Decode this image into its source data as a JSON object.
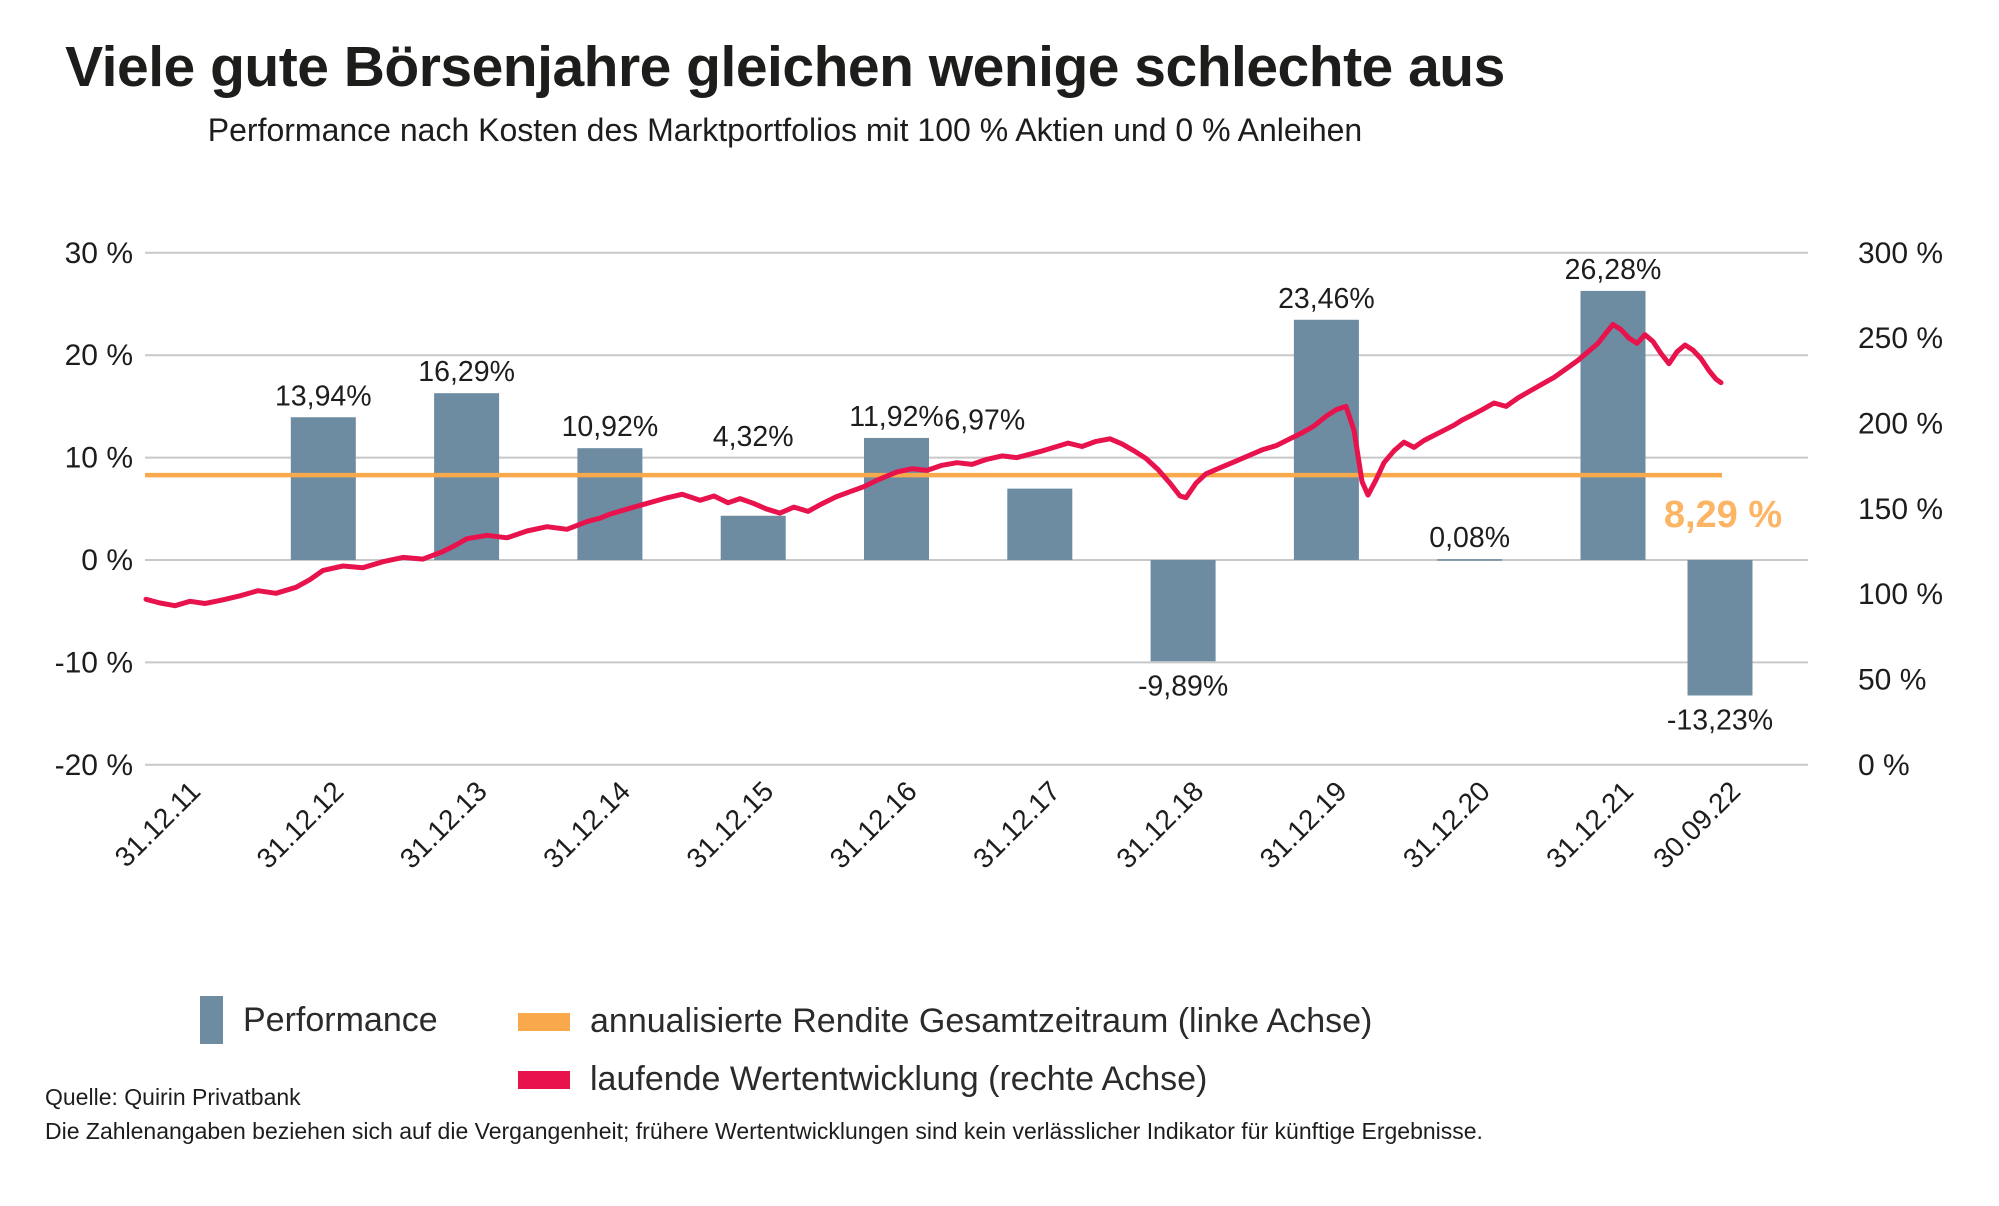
{
  "title": "Viele gute Börsenjahre gleichen wenige schlechte aus",
  "subtitle": "Performance nach Kosten des Marktportfolios mit 100 % Aktien und 0 % Anleihen",
  "colors": {
    "bar": "#6D8CA2",
    "running_line": "#E8124D",
    "annual_line": "#F8A94C",
    "annual_label": "#FBB564",
    "grid": "#C8C8C8",
    "text": "#1D1D1B"
  },
  "chart_data": {
    "type": "bar",
    "title": "Viele gute Börsenjahre gleichen wenige schlechte aus",
    "subtitle": "Performance nach Kosten des Marktportfolios mit 100 % Aktien und 0 % Anleihen",
    "categories": [
      "31.12.11",
      "31.12.12",
      "31.12.13",
      "31.12.14",
      "31.12.15",
      "31.12.16",
      "31.12.17",
      "31.12.18",
      "31.12.19",
      "31.12.20",
      "31.12.21",
      "30.09.22"
    ],
    "grid": true,
    "legend_position": "bottom",
    "left_axis": {
      "min": -20,
      "max": 30,
      "tick_values": [
        30,
        20,
        10,
        0,
        -10,
        -20
      ],
      "tick_labels": [
        "30 %",
        "20 %",
        "10 %",
        "0 %",
        "-10 %",
        "-20 %"
      ]
    },
    "right_axis": {
      "min": 0,
      "max": 300,
      "tick_values": [
        300,
        250,
        200,
        150,
        100,
        50,
        0
      ],
      "tick_labels": [
        "300 %",
        "250 %",
        "200 %",
        "150 %",
        "100 %",
        "50 %",
        "0 %"
      ]
    },
    "series": [
      {
        "name": "Performance",
        "type": "bar",
        "axis": "left",
        "unit": "%",
        "values": [
          13.94,
          16.29,
          10.92,
          4.32,
          11.92,
          6.97,
          -9.89,
          23.46,
          0.08,
          26.28,
          -13.23
        ],
        "labels": [
          "13,94%",
          "16,29%",
          "10,92%",
          "4,32%",
          "11,92%",
          "6,97%",
          "-9,89%",
          "23,46%",
          "0,08%",
          "26,28%",
          "-13,23%"
        ]
      },
      {
        "name": "annualisierte Rendite Gesamtzeitraum (linke Achse)",
        "type": "constant-line",
        "axis": "left",
        "value": 8.29,
        "label": "8,29 %"
      },
      {
        "name": "laufende Wertentwicklung (rechte Achse)",
        "type": "line",
        "axis": "right",
        "unit": "%",
        "points": [
          [
            146,
            97
          ],
          [
            160,
            94.8
          ],
          [
            175,
            93.2
          ],
          [
            190,
            95.8
          ],
          [
            205,
            94.5
          ],
          [
            222,
            96.5
          ],
          [
            240,
            99
          ],
          [
            258,
            102
          ],
          [
            276,
            100.5
          ],
          [
            296,
            104
          ],
          [
            310,
            108.5
          ],
          [
            323,
            113.9
          ],
          [
            343,
            116.5
          ],
          [
            363,
            115.5
          ],
          [
            383,
            119
          ],
          [
            403,
            121.5
          ],
          [
            423,
            120.5
          ],
          [
            443,
            125
          ],
          [
            455,
            128.5
          ],
          [
            467,
            132.5
          ],
          [
            487,
            134.5
          ],
          [
            507,
            133
          ],
          [
            527,
            137
          ],
          [
            547,
            139.5
          ],
          [
            567,
            138
          ],
          [
            587,
            142.5
          ],
          [
            600,
            144.5
          ],
          [
            610,
            146.9
          ],
          [
            628,
            150
          ],
          [
            646,
            153
          ],
          [
            664,
            156
          ],
          [
            682,
            158.5
          ],
          [
            700,
            155
          ],
          [
            714,
            157.5
          ],
          [
            728,
            153.5
          ],
          [
            740,
            156
          ],
          [
            753,
            153.3
          ],
          [
            766,
            150
          ],
          [
            780,
            147.5
          ],
          [
            794,
            151
          ],
          [
            808,
            148.5
          ],
          [
            822,
            153
          ],
          [
            836,
            157
          ],
          [
            850,
            160
          ],
          [
            864,
            163
          ],
          [
            878,
            167
          ],
          [
            897,
            171.6
          ],
          [
            912,
            173.5
          ],
          [
            927,
            172.5
          ],
          [
            942,
            175.5
          ],
          [
            957,
            177
          ],
          [
            972,
            176
          ],
          [
            987,
            179
          ],
          [
            1002,
            181
          ],
          [
            1017,
            180
          ],
          [
            1030,
            182
          ],
          [
            1040,
            183.5
          ],
          [
            1054,
            186
          ],
          [
            1068,
            188.5
          ],
          [
            1082,
            186.5
          ],
          [
            1096,
            189.5
          ],
          [
            1110,
            191
          ],
          [
            1122,
            188
          ],
          [
            1134,
            184
          ],
          [
            1146,
            179.5
          ],
          [
            1158,
            173
          ],
          [
            1170,
            165
          ],
          [
            1180,
            157.5
          ],
          [
            1186,
            156.5
          ],
          [
            1196,
            165
          ],
          [
            1206,
            170.5
          ],
          [
            1220,
            174
          ],
          [
            1234,
            177.5
          ],
          [
            1248,
            181
          ],
          [
            1262,
            184.5
          ],
          [
            1276,
            187
          ],
          [
            1290,
            191
          ],
          [
            1302,
            194.5
          ],
          [
            1314,
            198.5
          ],
          [
            1326,
            204.2
          ],
          [
            1336,
            208
          ],
          [
            1346,
            210
          ],
          [
            1354,
            196
          ],
          [
            1362,
            166
          ],
          [
            1368,
            158
          ],
          [
            1376,
            167
          ],
          [
            1384,
            177
          ],
          [
            1394,
            184
          ],
          [
            1404,
            189
          ],
          [
            1414,
            186
          ],
          [
            1424,
            190
          ],
          [
            1434,
            193
          ],
          [
            1444,
            196
          ],
          [
            1454,
            199
          ],
          [
            1462,
            202
          ],
          [
            1470,
            204.3
          ],
          [
            1482,
            208
          ],
          [
            1494,
            212
          ],
          [
            1506,
            210
          ],
          [
            1518,
            215
          ],
          [
            1530,
            219
          ],
          [
            1542,
            223
          ],
          [
            1554,
            227
          ],
          [
            1566,
            232
          ],
          [
            1578,
            237
          ],
          [
            1588,
            242
          ],
          [
            1598,
            247
          ],
          [
            1606,
            253
          ],
          [
            1613,
            258
          ],
          [
            1621,
            255
          ],
          [
            1629,
            250
          ],
          [
            1637,
            247
          ],
          [
            1645,
            252
          ],
          [
            1653,
            248
          ],
          [
            1661,
            241
          ],
          [
            1669,
            235
          ],
          [
            1677,
            242
          ],
          [
            1685,
            246
          ],
          [
            1693,
            243
          ],
          [
            1701,
            238
          ],
          [
            1709,
            231
          ],
          [
            1716,
            226
          ],
          [
            1721,
            223.9
          ]
        ]
      }
    ],
    "annotation": {
      "text": "8,29 %"
    }
  },
  "legend": [
    {
      "label": "Performance",
      "shape": "bar"
    },
    {
      "label": "annualisierte Rendite Gesamtzeitraum (linke Achse)",
      "shape": "dash"
    },
    {
      "label": "laufende Wertentwicklung (rechte Achse)",
      "shape": "dash"
    }
  ],
  "footer": {
    "source": "Quelle: Quirin Privatbank",
    "disclaimer": "Die Zahlenangaben beziehen sich auf die Vergangenheit; frühere Wertentwicklungen sind kein verlässlicher Indikator für künftige Ergebnisse."
  }
}
